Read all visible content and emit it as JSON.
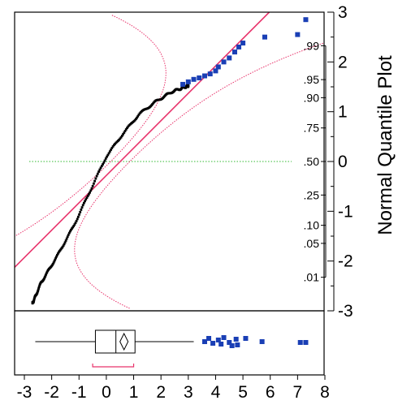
{
  "chart_data": {
    "type": "scatter",
    "title": "",
    "ylabel": "Normal Quantile Plot",
    "xlim": [
      -3,
      8
    ],
    "ylim": [
      -3,
      3
    ],
    "x_ticks": [
      "-3",
      "-2",
      "-1",
      "0",
      "1",
      "2",
      "3",
      "4",
      "5",
      "6",
      "7",
      "8"
    ],
    "y_ticks": [
      "3",
      "2",
      "1",
      "0",
      "-1",
      "-2",
      "-3"
    ],
    "prob_ticks": [
      {
        "label": ".99",
        "z": 2.326
      },
      {
        "label": ".95",
        "z": 1.645
      },
      {
        "label": ".90",
        "z": 1.282
      },
      {
        "label": ".75",
        "z": 0.674
      },
      {
        "label": ".50",
        "z": 0.0
      },
      {
        "label": ".25",
        "z": -0.674
      },
      {
        "label": ".10",
        "z": -1.282
      },
      {
        "label": ".05",
        "z": -1.645
      },
      {
        "label": ".01",
        "z": -2.326
      }
    ],
    "fit_line": {
      "slope": 0.55,
      "intercept": -0.28,
      "color": "#e8336b"
    },
    "confidence_band_color": "#e8336b",
    "median_line_color": "#33bb33",
    "black_point_color": "#000000",
    "outlier_color": "#1a3fb5",
    "black_series": {
      "n": 240,
      "x_min": -2.7,
      "x_max": 3.0,
      "curve": [
        [
          -2.7,
          -2.85
        ],
        [
          -2.4,
          -2.45
        ],
        [
          -1.8,
          -1.9
        ],
        [
          -1.2,
          -1.3
        ],
        [
          -0.6,
          -0.6
        ],
        [
          0,
          0.1
        ],
        [
          0.6,
          0.55
        ],
        [
          1.2,
          0.95
        ],
        [
          1.8,
          1.2
        ],
        [
          2.4,
          1.4
        ],
        [
          3.0,
          1.52
        ]
      ]
    },
    "outliers": [
      {
        "x": 2.8,
        "y": 1.55
      },
      {
        "x": 3.0,
        "y": 1.6
      },
      {
        "x": 3.2,
        "y": 1.65
      },
      {
        "x": 3.4,
        "y": 1.68
      },
      {
        "x": 3.6,
        "y": 1.72
      },
      {
        "x": 3.8,
        "y": 1.76
      },
      {
        "x": 4.0,
        "y": 1.82
      },
      {
        "x": 4.1,
        "y": 1.9
      },
      {
        "x": 4.3,
        "y": 2.0
      },
      {
        "x": 4.5,
        "y": 2.08
      },
      {
        "x": 4.7,
        "y": 2.2
      },
      {
        "x": 4.85,
        "y": 2.3
      },
      {
        "x": 5.0,
        "y": 2.38
      },
      {
        "x": 5.8,
        "y": 2.5
      },
      {
        "x": 7.0,
        "y": 2.55
      },
      {
        "x": 7.3,
        "y": 2.85
      }
    ],
    "boxplot": {
      "whisker_low": -2.6,
      "q1": -0.4,
      "median": 0.35,
      "q3": 1.05,
      "whisker_high": 3.2,
      "shortest_half": [
        -0.5,
        1.0
      ],
      "outliers_x": [
        3.6,
        3.75,
        3.9,
        4.1,
        4.2,
        4.3,
        4.5,
        4.6,
        4.75,
        4.8,
        5.1,
        5.7,
        7.1,
        7.3
      ]
    }
  }
}
